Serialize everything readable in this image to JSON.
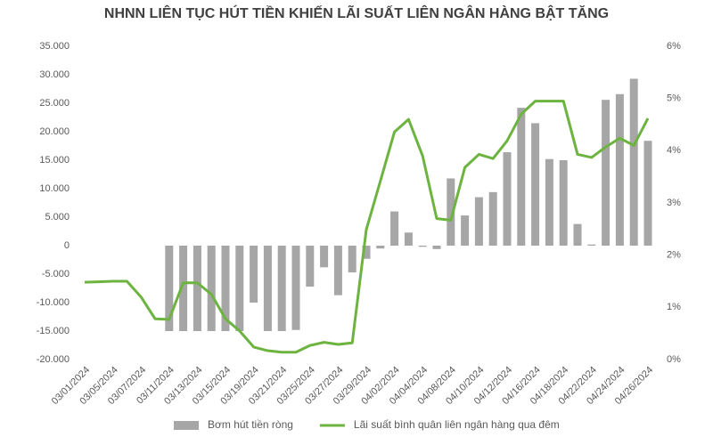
{
  "chart_data": {
    "type": "bar-line",
    "title": "NHNN LIÊN TỤC HÚT TIỀN KHIẾN LÃI SUẤT LIÊN NGÂN HÀNG BẬT TĂNG",
    "categories": [
      "03/01/2024",
      null,
      "03/05/2024",
      null,
      "03/07/2024",
      null,
      "03/11/2024",
      null,
      "03/13/2024",
      null,
      "03/15/2024",
      null,
      "03/19/2024",
      null,
      "03/21/2024",
      null,
      "03/25/2024",
      null,
      "03/27/2024",
      null,
      "03/29/2024",
      null,
      "04/02/2024",
      null,
      "04/04/2024",
      null,
      "04/08/2024",
      null,
      "04/10/2024",
      null,
      "04/12/2024",
      null,
      "04/16/2024",
      null,
      "04/18/2024",
      null,
      "04/22/2024",
      null,
      "04/24/2024",
      null,
      "04/26/2024"
    ],
    "series": [
      {
        "name": "Bơm hút tiền ròng",
        "type": "bar",
        "color": "#a6a6a6",
        "values": [
          0,
          0,
          0,
          0,
          0,
          0,
          -15000,
          -15000,
          -15000,
          -15000,
          -15000,
          -15000,
          -10000,
          -15000,
          -15000,
          -14800,
          -7200,
          -3800,
          -8700,
          -4700,
          -2300,
          -500,
          6000,
          2300,
          -200,
          -600,
          11800,
          5300,
          8500,
          9400,
          16400,
          24200,
          21500,
          15200,
          15000,
          3800,
          200,
          25600,
          26600,
          29300,
          18400
        ]
      },
      {
        "name": "Lãi suất bình quân liên ngân hàng qua đêm",
        "type": "line",
        "axis": "y2",
        "color": "#6db33f",
        "values": [
          1.48,
          1.49,
          1.5,
          1.5,
          1.2,
          0.78,
          0.77,
          1.47,
          1.47,
          1.25,
          0.78,
          0.55,
          0.24,
          0.17,
          0.14,
          0.14,
          0.27,
          0.33,
          0.29,
          0.32,
          2.49,
          3.42,
          4.36,
          4.6,
          3.9,
          2.7,
          2.67,
          3.68,
          3.93,
          3.85,
          4.19,
          4.7,
          4.95,
          4.95,
          4.95,
          3.93,
          3.87,
          4.07,
          4.24,
          4.1,
          4.62
        ]
      }
    ],
    "ylim": [
      -20000,
      35000
    ],
    "yticks": [
      {
        "value": -20000,
        "label": "-20.000"
      },
      {
        "value": -15000,
        "label": "-15.000"
      },
      {
        "value": -10000,
        "label": "-10.000"
      },
      {
        "value": -5000,
        "label": "-5.000"
      },
      0,
      {
        "value": 5000,
        "label": "5.000"
      },
      {
        "value": 10000,
        "label": "10.000"
      },
      {
        "value": 15000,
        "label": "15.000"
      },
      {
        "value": 20000,
        "label": "20.000"
      },
      {
        "value": 25000,
        "label": "25.000"
      },
      {
        "value": 30000,
        "label": "30.000"
      },
      {
        "value": 35000,
        "label": "35.000"
      }
    ],
    "y2lim": [
      0,
      6
    ],
    "y2ticks": [
      {
        "value": 0,
        "label": "0%"
      },
      {
        "value": 1,
        "label": "1%"
      },
      {
        "value": 2,
        "label": "2%"
      },
      {
        "value": 3,
        "label": "3%"
      },
      {
        "value": 4,
        "label": "4%"
      },
      {
        "value": 5,
        "label": "5%"
      },
      {
        "value": 6,
        "label": "6%"
      }
    ],
    "grid": false,
    "legend": "bottom"
  }
}
